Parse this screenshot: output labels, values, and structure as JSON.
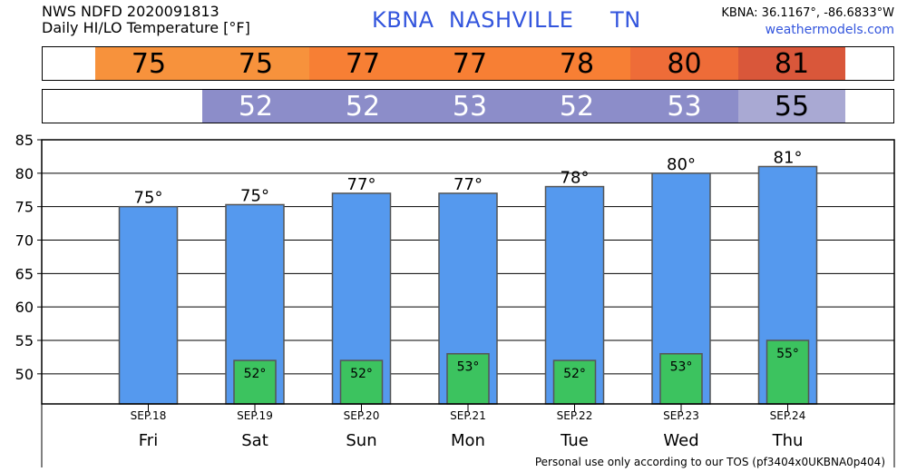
{
  "header": {
    "line1": "NWS NDFD 2020091813",
    "line2": "Daily HI/LO Temperature [°F]",
    "station_title": "KBNA  NASHVILLE     TN",
    "coords": "KBNA: 36.1167°, -86.6833°W",
    "site": "weathermodels.com"
  },
  "hi_band": [
    {
      "value": "75",
      "color": "#f7923c"
    },
    {
      "value": "75",
      "color": "#f7923c"
    },
    {
      "value": "77",
      "color": "#f77f34"
    },
    {
      "value": "77",
      "color": "#f77f34"
    },
    {
      "value": "78",
      "color": "#f77f34"
    },
    {
      "value": "80",
      "color": "#ee6c38"
    },
    {
      "value": "81",
      "color": "#d9573a"
    }
  ],
  "lo_band": [
    {
      "value": "52",
      "color": "#8c8dc9"
    },
    {
      "value": "52",
      "color": "#8c8dc9"
    },
    {
      "value": "53",
      "color": "#8c8dc9"
    },
    {
      "value": "52",
      "color": "#8c8dc9"
    },
    {
      "value": "53",
      "color": "#8c8dc9"
    },
    {
      "value": "55",
      "color": "#a9a9d3"
    }
  ],
  "chart_data": {
    "type": "bar",
    "categories": [
      "SEP.18",
      "SEP.19",
      "SEP.20",
      "SEP.21",
      "SEP.22",
      "SEP.23",
      "SEP.24"
    ],
    "days": [
      "Fri",
      "Sat",
      "Sun",
      "Mon",
      "Tue",
      "Wed",
      "Thu"
    ],
    "series": [
      {
        "values": [
          75,
          75.3,
          77,
          77,
          78,
          80,
          81
        ],
        "color": "#5599ee",
        "labels": [
          "75°",
          "75°",
          "77°",
          "77°",
          "78°",
          "80°",
          "81°"
        ]
      },
      {
        "values": [
          null,
          52,
          52,
          53,
          52,
          53,
          55
        ],
        "color": "#3cc35f",
        "labels": [
          "",
          "52°",
          "52°",
          "53°",
          "52°",
          "53°",
          "55°"
        ]
      }
    ],
    "ylim": [
      45.5,
      85
    ],
    "yticks": [
      50,
      55,
      60,
      65,
      70,
      75,
      80,
      85
    ],
    "grid": true
  },
  "footer": "Personal use only according to our TOS (pf3404x0UKBNA0p404)"
}
